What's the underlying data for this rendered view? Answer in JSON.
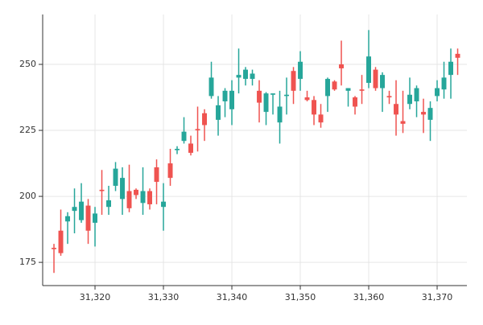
{
  "chart_data": {
    "type": "candlestick",
    "x": [
      31314,
      31315,
      31316,
      31317,
      31318,
      31319,
      31320,
      31321,
      31322,
      31323,
      31324,
      31325,
      31326,
      31327,
      31328,
      31329,
      31330,
      31331,
      31332,
      31333,
      31334,
      31335,
      31336,
      31337,
      31338,
      31339,
      31340,
      31341,
      31342,
      31343,
      31344,
      31345,
      31346,
      31347,
      31348,
      31349,
      31350,
      31351,
      31352,
      31353,
      31354,
      31355,
      31356,
      31357,
      31358,
      31359,
      31360,
      31361,
      31362,
      31363,
      31364,
      31365,
      31366,
      31367,
      31368,
      31369,
      31370,
      31371,
      31372,
      31373
    ],
    "open": [
      180.5,
      187,
      190.5,
      194.5,
      191,
      196.5,
      190,
      202.5,
      196,
      204,
      199,
      202,
      202.5,
      197.5,
      202,
      211,
      196,
      212.5,
      217.5,
      221,
      220,
      225.5,
      231.5,
      238,
      229,
      236,
      233,
      245,
      244.5,
      244.5,
      240,
      232,
      238.5,
      228,
      238,
      247.5,
      244.5,
      237.5,
      236.5,
      231,
      238,
      243.5,
      250,
      240,
      237.5,
      240.5,
      243,
      248,
      241,
      238,
      235,
      228.5,
      235,
      236,
      232,
      229,
      238,
      240.5,
      246,
      254
    ],
    "high": [
      182,
      195,
      194,
      203,
      205,
      199,
      196,
      210,
      204,
      213,
      211,
      212,
      203,
      211,
      203,
      214,
      205,
      218,
      219,
      230,
      223,
      234,
      233,
      251,
      238,
      241,
      244,
      256,
      249,
      248,
      244,
      239.5,
      239,
      240,
      245,
      249,
      255,
      240,
      238,
      235,
      245,
      244,
      259,
      241,
      238,
      246,
      263,
      249,
      247,
      240,
      244,
      240,
      245,
      242,
      237,
      236,
      244,
      251,
      256,
      256
    ],
    "low": [
      171,
      177.5,
      182,
      186,
      190,
      182,
      181,
      193,
      193,
      202,
      193,
      194,
      199,
      193,
      195,
      197,
      187,
      204,
      216,
      220,
      215.5,
      217,
      221,
      237,
      223,
      230,
      227,
      239,
      242,
      242,
      228,
      227,
      231,
      220,
      231,
      235,
      240,
      236,
      227,
      226,
      232,
      240,
      242,
      234,
      231,
      235,
      241,
      240,
      232,
      235,
      223,
      224,
      233,
      230,
      224,
      221,
      236,
      237,
      237,
      246
    ],
    "close": [
      180,
      178.5,
      192.5,
      196,
      198,
      187,
      193.5,
      202,
      198.5,
      210.5,
      207,
      195.5,
      200.5,
      202,
      197,
      205.5,
      198,
      207,
      218,
      224.5,
      216.5,
      225,
      227,
      245,
      234.5,
      240,
      240,
      246,
      248,
      246.5,
      235.5,
      239,
      239,
      234,
      238.5,
      240,
      251,
      236.5,
      231,
      228,
      244.5,
      240.5,
      248.5,
      241,
      234,
      240,
      253,
      241,
      246,
      237.5,
      231,
      227.5,
      238.5,
      241,
      231,
      233.5,
      241,
      245,
      251,
      252.5
    ],
    "up_color": "#26a69a",
    "down_color": "#ef5350",
    "xlim": [
      31312.35,
      31374.35
    ],
    "ylim": [
      166.2,
      268.9
    ],
    "xticks": [
      {
        "value": 31320,
        "label": "31,320"
      },
      {
        "value": 31330,
        "label": "31,330"
      },
      {
        "value": 31340,
        "label": "31,340"
      },
      {
        "value": 31350,
        "label": "31,350"
      },
      {
        "value": 31360,
        "label": "31,360"
      },
      {
        "value": 31370,
        "label": "31,370"
      }
    ],
    "yticks": [
      175,
      200,
      225,
      250
    ],
    "grid": true
  }
}
